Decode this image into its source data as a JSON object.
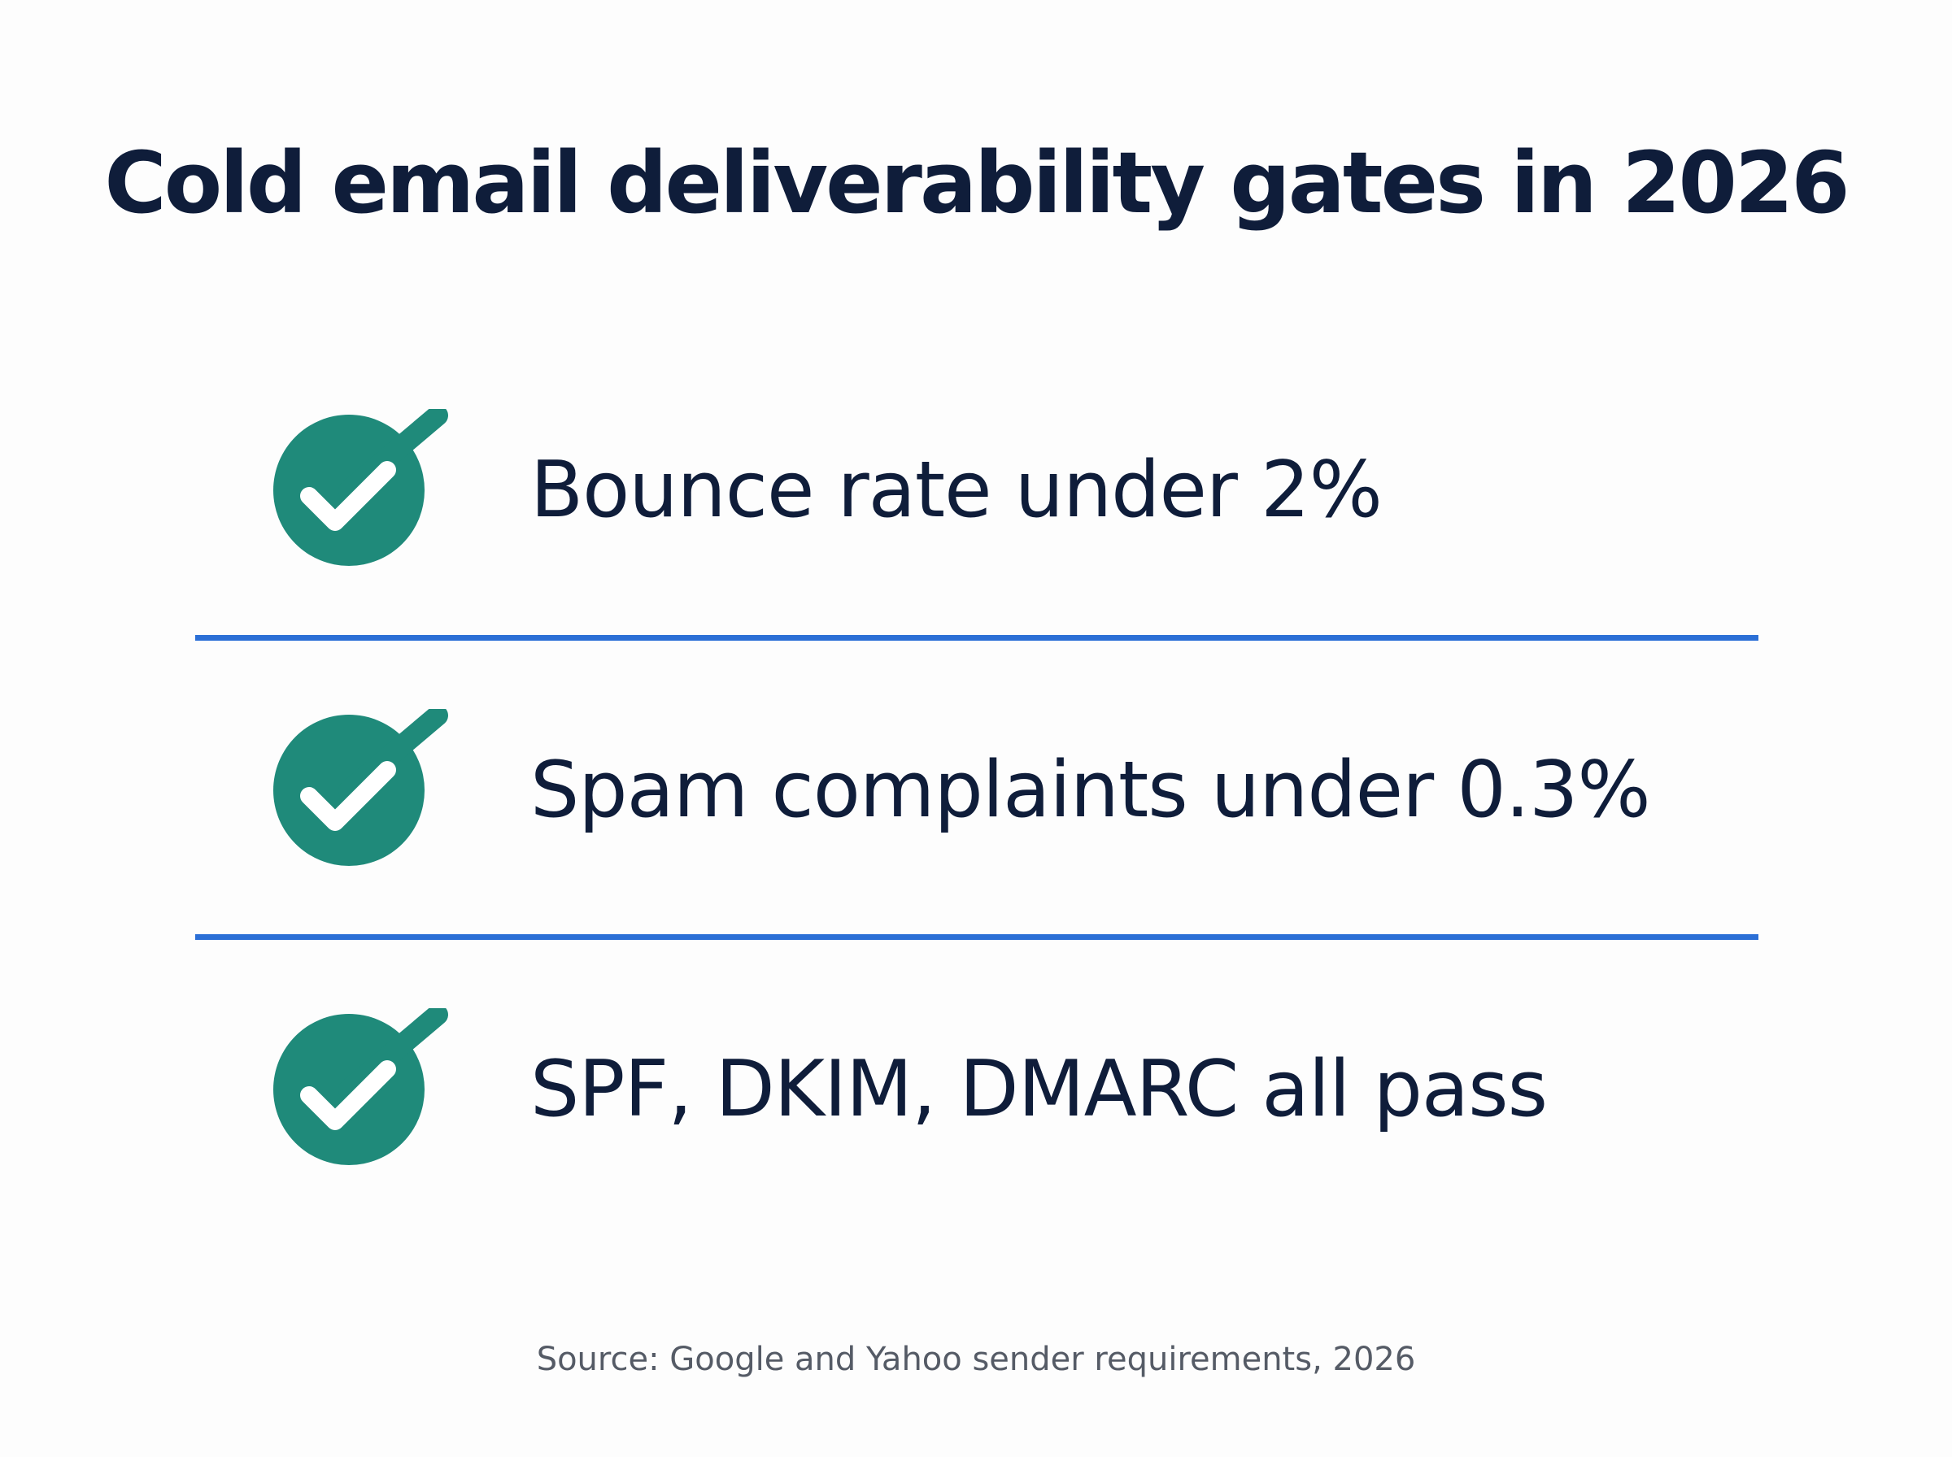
{
  "title": "Cold email deliverability gates in 2026",
  "items": [
    {
      "label": "Bounce rate under 2%",
      "icon": "check-circle-icon"
    },
    {
      "label": "Spam complaints under 0.3%",
      "icon": "check-circle-icon"
    },
    {
      "label": "SPF, DKIM, DMARC all pass",
      "icon": "check-circle-icon"
    }
  ],
  "source": "Source: Google and Yahoo sender requirements, 2026",
  "colors": {
    "title_text": "#0f1d3a",
    "check_fill": "#1f8a7a",
    "check_mark": "#ffffff",
    "divider": "#2b6fd6",
    "source_text": "#555b66",
    "background": "#fdfdfd"
  }
}
